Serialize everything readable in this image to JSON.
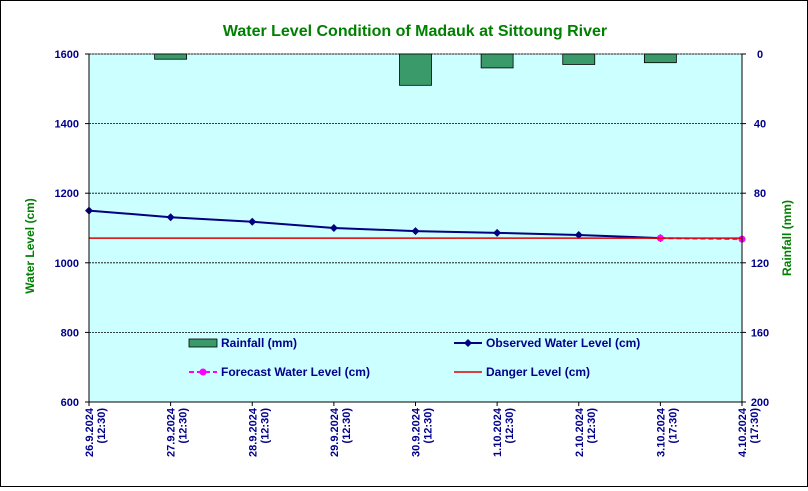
{
  "chart_data": {
    "type": "line",
    "title": "Water Level Condition of Madauk at Sittoung River",
    "ylabel": "Water Level (cm)",
    "y2label": "Rainfall (mm)",
    "ylim": [
      600,
      1600
    ],
    "yticks": [
      600,
      800,
      1000,
      1200,
      1400,
      1600
    ],
    "y2lim": [
      200,
      0
    ],
    "y2ticks": [
      0,
      40,
      80,
      120,
      160,
      200
    ],
    "grid": true,
    "categories": [
      [
        "26.9.2024",
        "(12:30)"
      ],
      [
        "27.9.2024",
        "(12:30)"
      ],
      [
        "28.9.2024",
        "(12:30)"
      ],
      [
        "29.9.2024",
        "(12:30)"
      ],
      [
        "30.9.2024",
        "(12:30)"
      ],
      [
        "1.10.2024",
        "(12:30)"
      ],
      [
        "2.10.2024",
        "(12:30)"
      ],
      [
        "3.10.2024",
        "(17:30)"
      ],
      [
        "4.10.2024",
        "(17:30)"
      ]
    ],
    "series": [
      {
        "name": "Rainfall (mm)",
        "type": "bar",
        "axis": "right",
        "color": "#3a9a6a",
        "values": [
          null,
          3,
          null,
          null,
          18,
          8,
          6,
          5,
          null
        ]
      },
      {
        "name": "Observed Water Level (cm)",
        "type": "line",
        "axis": "left",
        "color": "#000080",
        "values": [
          1150,
          1131,
          1118,
          1100,
          1091,
          1086,
          1080,
          1071,
          null
        ]
      },
      {
        "name": "Forecast Water Level (cm)",
        "type": "line",
        "style": "dashed",
        "axis": "left",
        "color": "#ff00ff",
        "values": [
          null,
          null,
          null,
          null,
          null,
          null,
          null,
          1071,
          1068
        ]
      },
      {
        "name": "Danger Level (cm)",
        "type": "line",
        "axis": "left",
        "color": "#e00000",
        "values": [
          1071,
          1071,
          1071,
          1071,
          1071,
          1071,
          1071,
          1071,
          1071
        ]
      }
    ],
    "colors": {
      "title": "#008000",
      "axis_labels": "#008000",
      "tick_labels": "#00008b",
      "plot_background": "#ccffff"
    }
  }
}
